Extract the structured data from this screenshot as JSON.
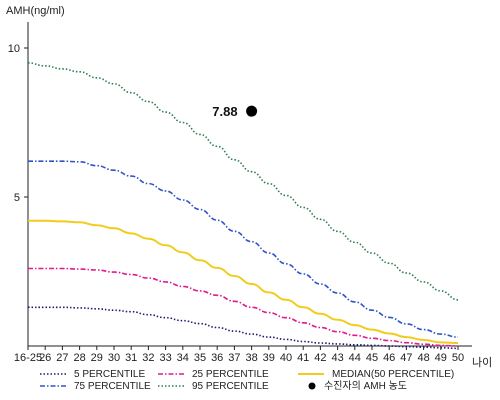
{
  "chart_data": {
    "type": "line",
    "ylabel": "AMH(ng/ml)",
    "xlabel": "나이",
    "x_categories": [
      "16-25",
      "26",
      "27",
      "28",
      "29",
      "30",
      "31",
      "32",
      "33",
      "34",
      "35",
      "36",
      "37",
      "38",
      "39",
      "40",
      "41",
      "42",
      "43",
      "44",
      "45",
      "46",
      "47",
      "48",
      "49",
      "50"
    ],
    "y_ticks": [
      5,
      10
    ],
    "ylim": [
      0,
      11
    ],
    "grid": false,
    "legend_position": "bottom",
    "series": [
      {
        "name": "5 PERCENTILE",
        "color": "#1a1a6e",
        "style": "dotted",
        "values": [
          1.3,
          1.3,
          1.3,
          1.28,
          1.25,
          1.2,
          1.15,
          1.05,
          0.95,
          0.85,
          0.75,
          0.62,
          0.5,
          0.4,
          0.3,
          0.22,
          0.15,
          0.1,
          0.07,
          0.04,
          0.02,
          0.0,
          -0.02,
          -0.04,
          -0.06,
          -0.08
        ]
      },
      {
        "name": "25 PERCENTILE",
        "color": "#e0198f",
        "style": "dashdot",
        "values": [
          2.6,
          2.6,
          2.6,
          2.58,
          2.55,
          2.48,
          2.4,
          2.28,
          2.15,
          2.0,
          1.85,
          1.7,
          1.5,
          1.3,
          1.12,
          0.95,
          0.78,
          0.62,
          0.48,
          0.36,
          0.26,
          0.18,
          0.11,
          0.06,
          0.02,
          0.0
        ]
      },
      {
        "name": "MEDIAN(50 PERCENTILE)",
        "color": "#f2cc1d",
        "style": "solid",
        "values": [
          4.2,
          4.2,
          4.18,
          4.15,
          4.05,
          3.95,
          3.78,
          3.6,
          3.38,
          3.14,
          2.88,
          2.62,
          2.35,
          2.08,
          1.8,
          1.55,
          1.3,
          1.08,
          0.88,
          0.7,
          0.55,
          0.42,
          0.3,
          0.2,
          0.12,
          0.1
        ]
      },
      {
        "name": "75 PERCENTILE",
        "color": "#2f54c7",
        "style": "dashdot",
        "values": [
          6.2,
          6.2,
          6.2,
          6.18,
          6.05,
          5.9,
          5.7,
          5.45,
          5.2,
          4.9,
          4.58,
          4.22,
          3.85,
          3.5,
          3.12,
          2.76,
          2.42,
          2.08,
          1.78,
          1.48,
          1.2,
          0.96,
          0.74,
          0.55,
          0.4,
          0.3
        ]
      },
      {
        "name": "95 PERCENTILE",
        "color": "#2e7d4f",
        "style": "dotted",
        "values": [
          9.5,
          9.4,
          9.3,
          9.2,
          9.0,
          8.8,
          8.5,
          8.2,
          7.85,
          7.5,
          7.1,
          6.7,
          6.25,
          5.85,
          5.45,
          5.05,
          4.65,
          4.25,
          3.85,
          3.48,
          3.12,
          2.78,
          2.45,
          2.15,
          1.85,
          1.55
        ]
      }
    ],
    "marker": {
      "name": "수진자의 AMH 농도",
      "category": "38",
      "value": 7.88,
      "label": "7.88",
      "color": "#000000"
    }
  }
}
